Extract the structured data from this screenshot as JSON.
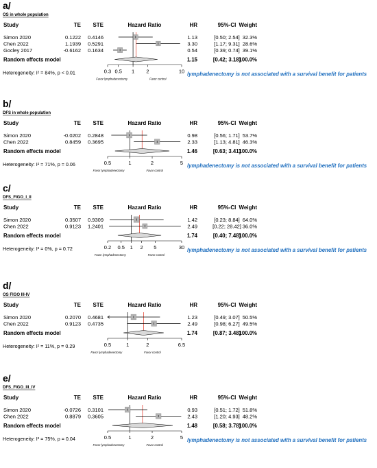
{
  "conclusion_note": "lymphadenectomy is not associated with a survival benefit for patients",
  "columns": {
    "study": "Study",
    "te": "TE",
    "ste": "STE",
    "hazard_ratio": "Hazard Ratio",
    "hr": "HR",
    "ci": "95%-CI",
    "weight": "Weight"
  },
  "pooled_label": "Random effects model",
  "favor_left": "Favor lymphadenectomy",
  "favor_right": "Favor control",
  "colors": {
    "note": "#1f6fbf",
    "ref_line": "#e0301e",
    "box": "#b4b4b4"
  },
  "chart_data": [
    {
      "type": "forest",
      "panel_label": "a/",
      "title": "OS in whole population",
      "x_scale": "log",
      "xlim": [
        0.3,
        10
      ],
      "x_ticks": [
        "0.3",
        "0.5",
        "1",
        "2",
        "10"
      ],
      "x_tick_values": [
        0.3,
        0.5,
        1,
        2,
        10
      ],
      "studies": [
        {
          "name": "Simon 2020",
          "te": "0.1222",
          "ste": "0.4146",
          "hr_text": "1.13",
          "ci_text": "[0.50; 2.54]",
          "weight_text": "32.3%",
          "hr": 1.13,
          "lo": 0.5,
          "hi": 2.54,
          "weight": 32.3
        },
        {
          "name": "Chen 2022",
          "te": "1.1939",
          "ste": "0.5291",
          "hr_text": "3.30",
          "ci_text": "[1.17; 9.31]",
          "weight_text": "28.6%",
          "hr": 3.3,
          "lo": 1.17,
          "hi": 9.31,
          "weight": 28.6
        },
        {
          "name": "Gocley 2017",
          "te": "-0.6162",
          "ste": "0.1634",
          "hr_text": "0.54",
          "ci_text": "[0.39; 0.74]",
          "weight_text": "39.1%",
          "hr": 0.54,
          "lo": 0.39,
          "hi": 0.74,
          "weight": 39.1
        }
      ],
      "pooled": {
        "hr_text": "1.15",
        "ci_text": "[0.42; 3.18]",
        "weight_text": "100.0%",
        "hr": 1.15,
        "lo": 0.42,
        "hi": 3.18
      },
      "heterogeneity_text": "Heterogeneity: I² = 84%, p < 0.01"
    },
    {
      "type": "forest",
      "panel_label": "b/",
      "title": "DFS in whole population",
      "x_scale": "log",
      "xlim": [
        0.5,
        5
      ],
      "x_ticks": [
        "0.5",
        "1",
        "2",
        "5"
      ],
      "x_tick_values": [
        0.5,
        1,
        2,
        5
      ],
      "studies": [
        {
          "name": "Simon 2020",
          "te": "-0.0202",
          "ste": "0.2848",
          "hr_text": "0.98",
          "ci_text": "[0.56; 1.71]",
          "weight_text": "53.7%",
          "hr": 0.98,
          "lo": 0.56,
          "hi": 1.71,
          "weight": 53.7
        },
        {
          "name": "Chen 2022",
          "te": "0.8459",
          "ste": "0.3695",
          "hr_text": "2.33",
          "ci_text": "[1.13; 4.81]",
          "weight_text": "46.3%",
          "hr": 2.33,
          "lo": 1.13,
          "hi": 4.81,
          "weight": 46.3
        }
      ],
      "pooled": {
        "hr_text": "1.46",
        "ci_text": "[0.63; 3.41]",
        "weight_text": "100.0%",
        "hr": 1.46,
        "lo": 0.63,
        "hi": 3.41
      },
      "heterogeneity_text": "Heterogeneity: I² = 71%, p = 0.06"
    },
    {
      "type": "forest",
      "panel_label": "c/",
      "title": "DFS_FIGO_I_II",
      "x_scale": "log",
      "xlim": [
        0.2,
        30
      ],
      "x_ticks": [
        "0.2",
        "0.5",
        "1",
        "2",
        "5",
        "30"
      ],
      "x_tick_values": [
        0.2,
        0.5,
        1,
        2,
        5,
        30
      ],
      "studies": [
        {
          "name": "Simon 2020",
          "te": "0.3507",
          "ste": "0.9309",
          "hr_text": "1.42",
          "ci_text": "[0.23; 8.84]",
          "weight_text": "64.0%",
          "hr": 1.42,
          "lo": 0.23,
          "hi": 8.84,
          "weight": 64.0
        },
        {
          "name": "Chen 2022",
          "te": "0.9123",
          "ste": "1.2401",
          "hr_text": "2.49",
          "ci_text": "[0.22; 28.42]",
          "weight_text": "36.0%",
          "hr": 2.49,
          "lo": 0.22,
          "hi": 28.42,
          "weight": 36.0
        }
      ],
      "pooled": {
        "hr_text": "1.74",
        "ci_text": "[0.40; 7.48]",
        "weight_text": "100.0%",
        "hr": 1.74,
        "lo": 0.4,
        "hi": 7.48
      },
      "heterogeneity_text": "Heterogeneity: I² = 0%, p = 0.72"
    },
    {
      "type": "forest",
      "panel_label": "d/",
      "title": "OS FIGO III-IV",
      "x_scale": "log",
      "xlim": [
        0.5,
        6.5
      ],
      "x_ticks": [
        "0.5",
        "1",
        "2",
        "6.5"
      ],
      "x_tick_values": [
        0.5,
        1,
        2,
        6.5
      ],
      "studies": [
        {
          "name": "Simon 2020",
          "te": "0.2070",
          "ste": "0.4681",
          "hr_text": "1.23",
          "ci_text": "[0.49; 3.07]",
          "weight_text": "50.5%",
          "hr": 1.23,
          "lo": 0.49,
          "hi": 3.07,
          "weight": 50.5
        },
        {
          "name": "Chen 2022",
          "te": "0.9123",
          "ste": "0.4735",
          "hr_text": "2.49",
          "ci_text": "[0.98; 6.27]",
          "weight_text": "49.5%",
          "hr": 2.49,
          "lo": 0.98,
          "hi": 6.27,
          "weight": 49.5
        }
      ],
      "pooled": {
        "hr_text": "1.74",
        "ci_text": "[0.87; 3.48]",
        "weight_text": "100.0%",
        "hr": 1.74,
        "lo": 0.87,
        "hi": 3.48
      },
      "heterogeneity_text": "Heterogeneity: I² = 11%, p = 0.29"
    },
    {
      "type": "forest",
      "panel_label": "e/",
      "title": "DFS_FIGO_III_IV",
      "x_scale": "log",
      "xlim": [
        0.5,
        5
      ],
      "x_ticks": [
        "0.5",
        "1",
        "2",
        "5"
      ],
      "x_tick_values": [
        0.5,
        1,
        2,
        5
      ],
      "studies": [
        {
          "name": "Simon 2020",
          "te": "-0.0726",
          "ste": "0.3101",
          "hr_text": "0.93",
          "ci_text": "[0.51; 1.72]",
          "weight_text": "51.8%",
          "hr": 0.93,
          "lo": 0.51,
          "hi": 1.72,
          "weight": 51.8
        },
        {
          "name": "Chen 2022",
          "te": "0.8879",
          "ste": "0.3605",
          "hr_text": "2.43",
          "ci_text": "[1.20; 4.93]",
          "weight_text": "48.2%",
          "hr": 2.43,
          "lo": 1.2,
          "hi": 4.93,
          "weight": 48.2
        }
      ],
      "pooled": {
        "hr_text": "1.48",
        "ci_text": "[0.58; 3.78]",
        "weight_text": "100.0%",
        "hr": 1.48,
        "lo": 0.58,
        "hi": 3.78
      },
      "heterogeneity_text": "Heterogeneity: I² = 75%, p = 0.04"
    }
  ]
}
